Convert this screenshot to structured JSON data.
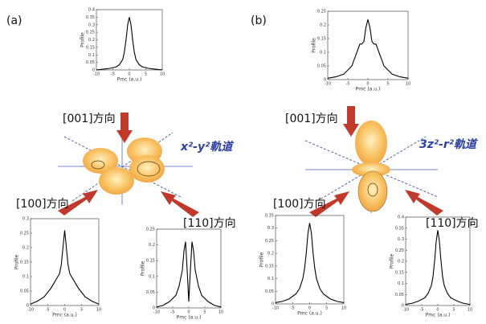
{
  "panels": [
    {
      "label": "(a)",
      "orbital": "x²-y²軌道",
      "directions": [
        "[001]方向",
        "[100]方向",
        "[110]方向"
      ]
    },
    {
      "label": "(b)",
      "orbital": "3z²-r²軌道",
      "directions": [
        "[001]方向",
        "[100]方向",
        "[110]方向"
      ]
    }
  ],
  "chart_data": [
    {
      "type": "line",
      "y_label": "Profile",
      "x_label": "Pmc (a.u.)",
      "color": "#000000",
      "x": [
        -10,
        -8,
        -6,
        -4,
        -3,
        -2,
        -1.5,
        -1,
        -0.5,
        0,
        0.5,
        1,
        1.5,
        2,
        3,
        4,
        6,
        8,
        10
      ],
      "values": [
        0,
        0.005,
        0.01,
        0.02,
        0.035,
        0.07,
        0.12,
        0.2,
        0.3,
        0.35,
        0.3,
        0.2,
        0.12,
        0.07,
        0.035,
        0.02,
        0.01,
        0.005,
        0
      ],
      "xlim": [
        -10,
        10
      ],
      "xticks": [
        -10,
        -5,
        0,
        5,
        10
      ],
      "ylim": [
        0,
        0.4
      ],
      "yticks": [
        0,
        0.05,
        0.1,
        0.15,
        0.2,
        0.25,
        0.3,
        0.35,
        0.4
      ]
    },
    {
      "type": "line",
      "y_label": "Profile",
      "x_label": "Pmc (a.u.)",
      "color": "#000000",
      "x": [
        -10,
        -8,
        -6,
        -4,
        -3,
        -2,
        -1.5,
        -1,
        -0.5,
        0,
        0.5,
        1,
        1.5,
        2,
        3,
        4,
        6,
        8,
        10
      ],
      "values": [
        0.005,
        0.01,
        0.02,
        0.05,
        0.09,
        0.13,
        0.13,
        0.14,
        0.19,
        0.22,
        0.19,
        0.14,
        0.13,
        0.13,
        0.09,
        0.05,
        0.02,
        0.01,
        0.005
      ],
      "xlim": [
        -10,
        10
      ],
      "xticks": [
        -10,
        -5,
        0,
        5,
        10
      ],
      "ylim": [
        0,
        0.25
      ],
      "yticks": [
        0,
        0.05,
        0.1,
        0.15,
        0.2,
        0.25
      ]
    },
    {
      "type": "line",
      "y_label": "Profile",
      "x_label": "Pmc (a.u.)",
      "color": "#000000",
      "x": [
        -10,
        -8,
        -6,
        -4,
        -3,
        -2,
        -1.5,
        -1,
        -0.5,
        0,
        0.5,
        1,
        1.5,
        2,
        3,
        4,
        6,
        8,
        10
      ],
      "values": [
        0.005,
        0.015,
        0.03,
        0.06,
        0.08,
        0.1,
        0.11,
        0.14,
        0.2,
        0.26,
        0.2,
        0.14,
        0.11,
        0.1,
        0.08,
        0.06,
        0.03,
        0.015,
        0.005
      ],
      "xlim": [
        -10,
        10
      ],
      "xticks": [
        -10,
        -5,
        0,
        5,
        10
      ],
      "ylim": [
        0,
        0.3
      ],
      "yticks": [
        0,
        0.05,
        0.1,
        0.15,
        0.2,
        0.25,
        0.3
      ]
    },
    {
      "type": "line",
      "y_label": "Profile",
      "x_label": "Pmc (a.u.)",
      "color": "#000000",
      "x": [
        -10,
        -8,
        -6,
        -4,
        -3,
        -2,
        -1.5,
        -1,
        -0.5,
        0,
        0.5,
        1,
        1.5,
        2,
        3,
        4,
        6,
        8,
        10
      ],
      "values": [
        0.003,
        0.008,
        0.02,
        0.04,
        0.07,
        0.12,
        0.18,
        0.21,
        0.12,
        0.02,
        0.12,
        0.21,
        0.18,
        0.12,
        0.07,
        0.04,
        0.02,
        0.008,
        0.003
      ],
      "xlim": [
        -10,
        10
      ],
      "xticks": [
        -10,
        -5,
        0,
        5,
        10
      ],
      "ylim": [
        0,
        0.25
      ],
      "yticks": [
        0,
        0.05,
        0.1,
        0.15,
        0.2,
        0.25
      ]
    },
    {
      "type": "line",
      "y_label": "Profile",
      "x_label": "Pmc (a.u.)",
      "color": "#000000",
      "x": [
        -10,
        -8,
        -6,
        -4,
        -3,
        -2,
        -1.5,
        -1,
        -0.5,
        0,
        0.5,
        1,
        1.5,
        2,
        3,
        4,
        6,
        8,
        10
      ],
      "values": [
        0.005,
        0.01,
        0.02,
        0.04,
        0.06,
        0.1,
        0.14,
        0.2,
        0.28,
        0.32,
        0.28,
        0.2,
        0.14,
        0.1,
        0.06,
        0.04,
        0.02,
        0.01,
        0.005
      ],
      "xlim": [
        -10,
        10
      ],
      "xticks": [
        -10,
        -5,
        0,
        5,
        10
      ],
      "ylim": [
        0,
        0.35
      ],
      "yticks": [
        0,
        0.05,
        0.1,
        0.15,
        0.2,
        0.25,
        0.3,
        0.35
      ]
    },
    {
      "type": "line",
      "y_label": "Profile",
      "x_label": "Pmc (a.u.)",
      "color": "#000000",
      "x": [
        -10,
        -8,
        -6,
        -4,
        -3,
        -2,
        -1.5,
        -1,
        -0.5,
        0,
        0.5,
        1,
        1.5,
        2,
        3,
        4,
        6,
        8,
        10
      ],
      "values": [
        0.005,
        0.01,
        0.02,
        0.035,
        0.055,
        0.09,
        0.13,
        0.2,
        0.29,
        0.34,
        0.29,
        0.2,
        0.13,
        0.09,
        0.055,
        0.035,
        0.02,
        0.01,
        0.005
      ],
      "xlim": [
        -10,
        10
      ],
      "xticks": [
        -10,
        -5,
        0,
        5,
        10
      ],
      "ylim": [
        0,
        0.4
      ],
      "yticks": [
        0,
        0.05,
        0.1,
        0.15,
        0.2,
        0.25,
        0.3,
        0.35,
        0.4
      ]
    }
  ]
}
